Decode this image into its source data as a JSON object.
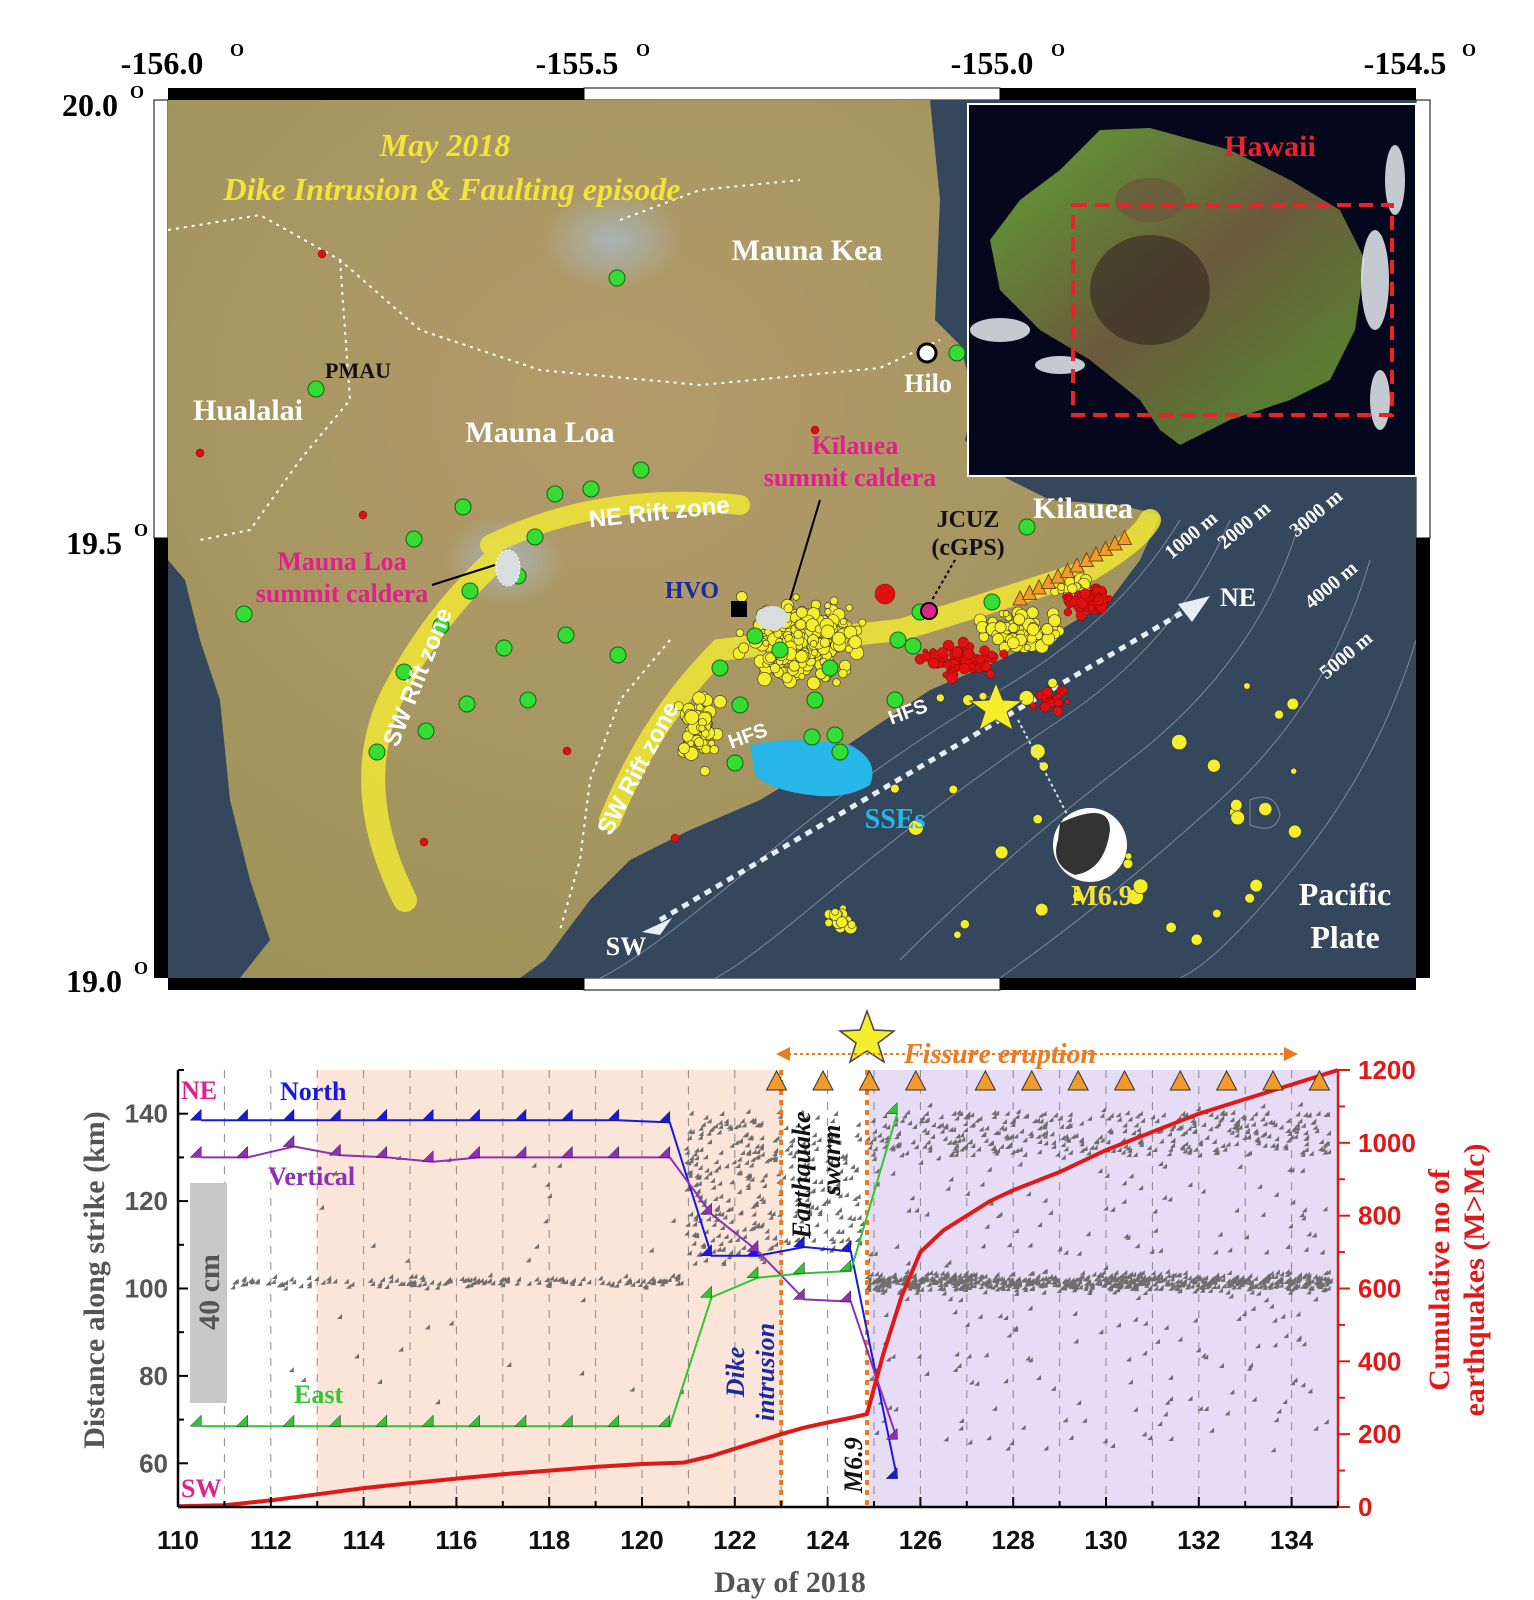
{
  "map": {
    "lon_ticks": [
      "-156.0",
      "-155.5",
      "-155.0",
      "-154.5"
    ],
    "lat_ticks": [
      "20.0",
      "19.5",
      "19.0"
    ],
    "degree_symbol": "O",
    "title_line1": "May 2018",
    "title_line2": "Dike Intrusion & Faulting episode",
    "labels": {
      "mauna_kea": "Mauna Kea",
      "mauna_loa": "Mauna Loa",
      "hualalai": "Hualalai",
      "pmau": "PMAU",
      "hilo": "Hilo",
      "kilauea_caldera_1": "Kīlauea",
      "kilauea_caldera_2": "summit caldera",
      "kilauea": "Kilauea",
      "jcuz_1": "JCUZ",
      "jcuz_2": "(cGPS)",
      "hvo": "HVO",
      "mlsc_1": "Mauna Loa",
      "mlsc_2": "summit caldera",
      "ne_rift": "NE Rift zone",
      "sw_rift_1": "SW Rift zone",
      "sw_rift_2": "SW Rift zone",
      "hfs_1": "HFS",
      "hfs_2": "HFS",
      "sses": "SSEs",
      "ne_arrow": "NE",
      "sw_arrow": "SW",
      "m69": "M6.9",
      "pacific_1": "Pacific",
      "pacific_2": "Plate",
      "depth_1000": "1000 m",
      "depth_2000": "2000 m",
      "depth_3000": "3000 m",
      "depth_4000": "4000 m",
      "depth_5000": "5000 m"
    },
    "inset_label": "Hawaii",
    "colors": {
      "ocean": "#34475c",
      "land": "#a7955e",
      "green_station": "#33dd33",
      "yellow_quake": "#f5ee2a",
      "red_quake": "#e01010",
      "rift": "#f1e636",
      "caldera_label": "#e0218a",
      "sse": "#27b6e8",
      "title": "#f2e43a"
    }
  },
  "chart_data": {
    "type": "line",
    "xlabel": "Day of 2018",
    "ylabel_left": "Distance along strike (km)",
    "ylabel_right_1": "Cumulative no of",
    "ylabel_right_2": "earthquakes (M>Mc)",
    "xlim": [
      110,
      135
    ],
    "ylim_left": [
      50,
      150
    ],
    "ylim_right": [
      0,
      1200
    ],
    "x_ticks": [
      110,
      112,
      114,
      116,
      118,
      120,
      122,
      124,
      126,
      128,
      130,
      132,
      134
    ],
    "y_ticks_left": [
      60,
      80,
      100,
      120,
      140
    ],
    "y_ticks_right": [
      0,
      200,
      400,
      600,
      800,
      1000,
      1200
    ],
    "corner_labels": {
      "ne": "NE",
      "sw": "SW"
    },
    "scale_bar_label": "40 cm",
    "annotations": {
      "fissure": "Fissure eruption",
      "swarm_1": "Earthquake",
      "swarm_2": "swarm",
      "dike_1": "Dike",
      "dike_2": "intrusion",
      "m69": "M6.9"
    },
    "shading": [
      {
        "from": 113,
        "to": 123,
        "color": "#fbe5d8"
      },
      {
        "from": 123,
        "to": 124.9,
        "color": "#ffffff"
      },
      {
        "from": 124.9,
        "to": 135,
        "color": "#e7dcf6"
      }
    ],
    "event_lines": [
      123,
      124.85
    ],
    "mainshock_day": 124.85,
    "eruption_triangle_days": [
      122.9,
      123.9,
      124.9,
      125.9,
      127.4,
      128.4,
      129.4,
      130.4,
      131.6,
      132.6,
      133.6,
      134.6
    ],
    "series": [
      {
        "name": "North",
        "color": "#1818e0",
        "x": [
          110.5,
          111.5,
          112.5,
          113.5,
          114.5,
          115.5,
          116.5,
          117.5,
          118.5,
          119.5,
          120.6,
          121.5,
          122.5,
          123.5,
          124.5,
          125.5
        ],
        "y": [
          138.5,
          138.5,
          138.5,
          138.5,
          138.5,
          138.5,
          138.5,
          138.5,
          138.5,
          138.5,
          138,
          107.5,
          107.5,
          109.5,
          108.5,
          56.5
        ]
      },
      {
        "name": "Vertical",
        "color": "#8e2fb8",
        "x": [
          110.5,
          111.5,
          112.5,
          113.5,
          114.5,
          115.5,
          116.5,
          117.5,
          118.5,
          119.5,
          120.6,
          121.5,
          122.5,
          123.5,
          124.5,
          125.5
        ],
        "y": [
          130,
          130,
          132.5,
          130.5,
          130,
          129,
          130,
          130,
          130,
          130,
          130,
          117,
          108.5,
          97.5,
          97,
          65.5
        ]
      },
      {
        "name": "East",
        "color": "#33c433",
        "x": [
          110.5,
          111.5,
          112.5,
          113.5,
          114.5,
          115.5,
          116.5,
          117.5,
          118.5,
          119.5,
          120.6,
          121.5,
          122.5,
          123.5,
          124.5,
          125.5
        ],
        "y": [
          68.5,
          68.5,
          68.5,
          68.5,
          68.5,
          68.5,
          68.5,
          68.5,
          68.5,
          68.5,
          68.5,
          98,
          102.5,
          103.5,
          104,
          140
        ]
      },
      {
        "name": "Cumulative earthquakes",
        "color": "#e01818",
        "axis": "right",
        "x": [
          110,
          111,
          112,
          113,
          114,
          115,
          116,
          117,
          118,
          119,
          120,
          120.9,
          121.5,
          122,
          122.5,
          123,
          123.5,
          124,
          124.5,
          124.85,
          125.2,
          125.6,
          126,
          126.5,
          127,
          127.5,
          128,
          129,
          130,
          131,
          132,
          133,
          134,
          135
        ],
        "y": [
          2,
          5,
          18,
          35,
          52,
          65,
          78,
          90,
          100,
          110,
          118,
          122,
          140,
          160,
          180,
          200,
          218,
          232,
          245,
          255,
          420,
          580,
          700,
          760,
          800,
          840,
          870,
          920,
          980,
          1030,
          1080,
          1120,
          1160,
          1200
        ]
      }
    ]
  }
}
